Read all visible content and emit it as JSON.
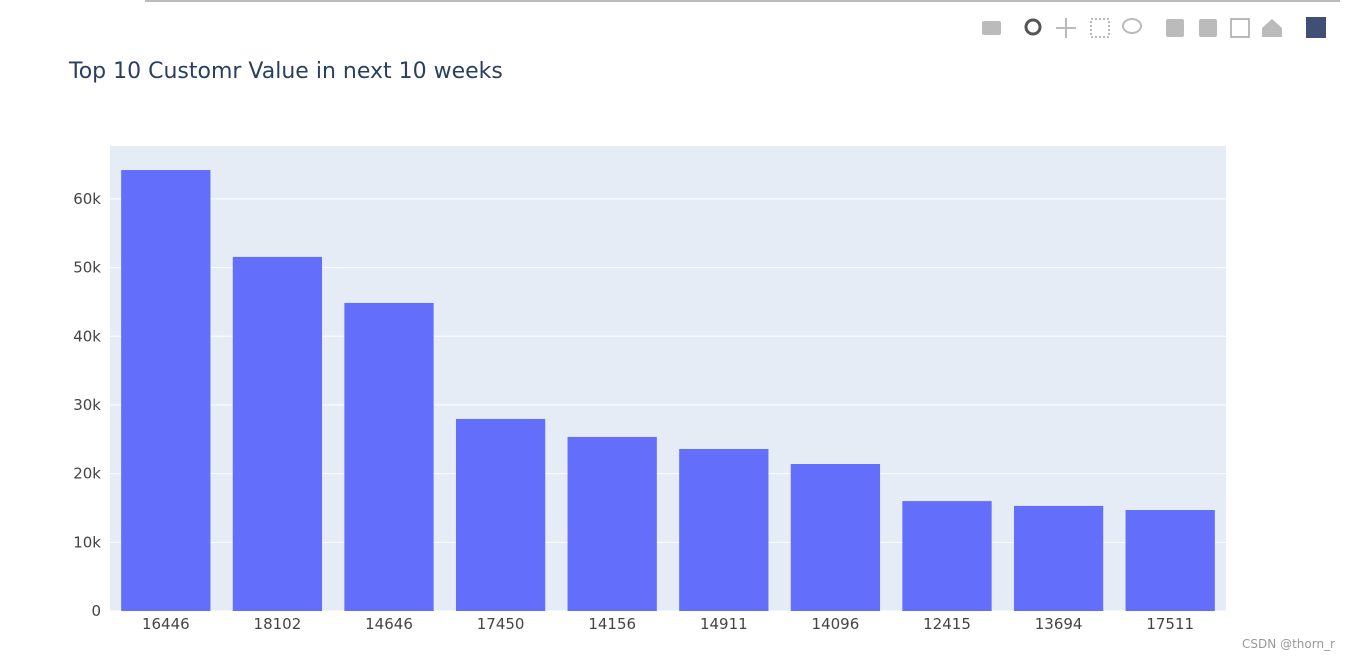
{
  "chart_data": {
    "type": "bar",
    "title": "Top 10 Customr Value in next 10 weeks",
    "categories": [
      "16446",
      "18102",
      "14646",
      "17450",
      "14156",
      "14911",
      "14096",
      "12415",
      "13694",
      "17511"
    ],
    "values": [
      64200,
      51550,
      44850,
      27960,
      25340,
      23590,
      21400,
      16000,
      15300,
      14700
    ],
    "color": "#636efa",
    "ylim": [
      0,
      67700
    ],
    "yticks": [
      0,
      {
        "value": 10000,
        "label": "10k"
      },
      {
        "value": 20000,
        "label": "20k"
      },
      {
        "value": 30000,
        "label": "30k"
      },
      {
        "value": 40000,
        "label": "40k"
      },
      {
        "value": 50000,
        "label": "50k"
      },
      {
        "value": 60000,
        "label": "60k"
      }
    ],
    "grid": true
  },
  "watermark": "CSDN @thorn_r"
}
